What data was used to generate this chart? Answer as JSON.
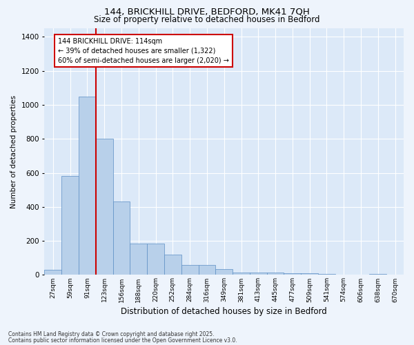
{
  "title1": "144, BRICKHILL DRIVE, BEDFORD, MK41 7QH",
  "title2": "Size of property relative to detached houses in Bedford",
  "xlabel": "Distribution of detached houses by size in Bedford",
  "ylabel": "Number of detached properties",
  "categories": [
    "27sqm",
    "59sqm",
    "91sqm",
    "123sqm",
    "156sqm",
    "188sqm",
    "220sqm",
    "252sqm",
    "284sqm",
    "316sqm",
    "349sqm",
    "381sqm",
    "413sqm",
    "445sqm",
    "477sqm",
    "509sqm",
    "541sqm",
    "574sqm",
    "606sqm",
    "638sqm",
    "670sqm"
  ],
  "values": [
    30,
    580,
    1050,
    800,
    430,
    185,
    185,
    120,
    60,
    60,
    35,
    15,
    15,
    15,
    10,
    10,
    5,
    2,
    2,
    5,
    2
  ],
  "bar_color": "#b8d0ea",
  "bar_edge_color": "#5b8ec4",
  "vline_color": "#cc0000",
  "annotation_box_text": "144 BRICKHILL DRIVE: 114sqm\n← 39% of detached houses are smaller (1,322)\n60% of semi-detached houses are larger (2,020) →",
  "annotation_box_color": "#cc0000",
  "bg_color": "#eef4fc",
  "plot_bg_color": "#dce9f8",
  "footer1": "Contains HM Land Registry data © Crown copyright and database right 2025.",
  "footer2": "Contains public sector information licensed under the Open Government Licence v3.0.",
  "ylim": [
    0,
    1450
  ],
  "yticks": [
    0,
    200,
    400,
    600,
    800,
    1000,
    1200,
    1400
  ]
}
